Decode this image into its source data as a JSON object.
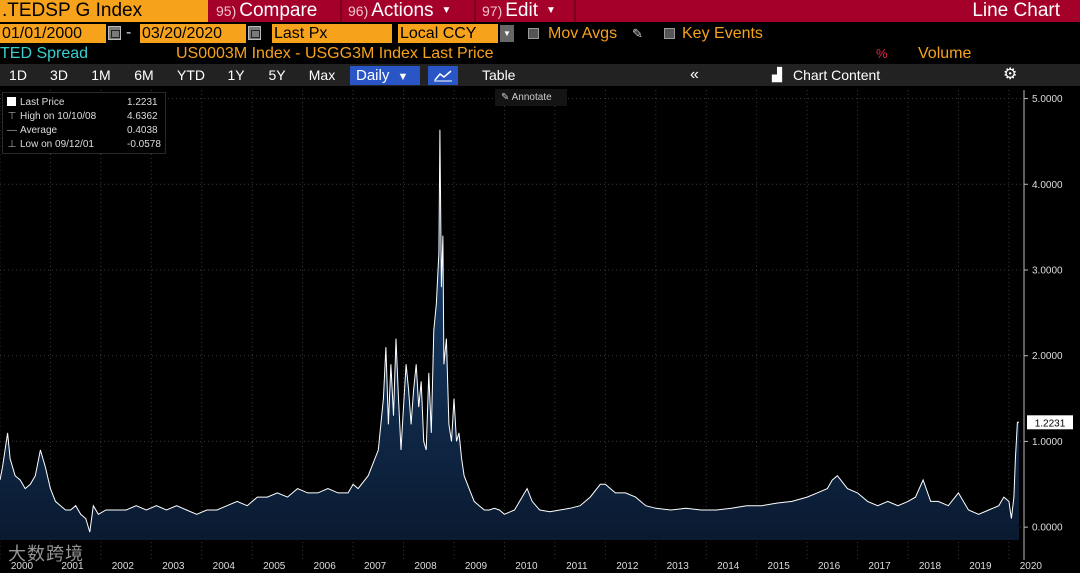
{
  "header": {
    "ticker": ".TEDSP G Index",
    "compare_num": "95)",
    "compare_label": "Compare",
    "actions_num": "96)",
    "actions_label": "Actions",
    "edit_num": "97)",
    "edit_label": "Edit",
    "chart_type": "Line Chart"
  },
  "controls": {
    "start_date": "01/01/2000",
    "end_date": "03/20/2020",
    "date_sep": "-",
    "field": "Last Px",
    "currency": "Local CCY",
    "mov_avgs": "Mov Avgs",
    "key_events": "Key Events"
  },
  "series_row": {
    "name": "TED Spread",
    "formula": "US0003M Index - USGG3M Index Last Price",
    "pct": "%",
    "volume": "Volume"
  },
  "toolbar": {
    "periods": [
      "1D",
      "3D",
      "1M",
      "6M",
      "YTD",
      "1Y",
      "5Y",
      "Max"
    ],
    "frequency": "Daily",
    "table": "Table",
    "collapse": "«",
    "chart_content": "Chart Content"
  },
  "legend": {
    "last_price_label": "Last Price",
    "last_price_value": "1.2231",
    "high_label": "High on 10/10/08",
    "high_value": "4.6362",
    "average_label": "Average",
    "average_value": "0.4038",
    "low_label": "Low on 09/12/01",
    "low_value": "-0.0578"
  },
  "annotate_label": "Annotate",
  "watermark": "大数跨境",
  "colors": {
    "line": "#ffffff",
    "area_top": "#1c4a7e",
    "area_bottom": "#0a1a30",
    "accent_orange": "#f7a21b",
    "header_red": "#a5002a"
  },
  "chart_data": {
    "type": "area",
    "title": "",
    "xlabel": "",
    "ylabel": "",
    "xlim": [
      2000.0,
      2020.3
    ],
    "ylim": [
      -0.15,
      5.1
    ],
    "y_ticks": [
      "0.0000",
      "1.0000",
      "2.0000",
      "3.0000",
      "4.0000",
      "5.0000"
    ],
    "x_ticks": [
      "2000",
      "2001",
      "2002",
      "2003",
      "2004",
      "2005",
      "2006",
      "2007",
      "2008",
      "2009",
      "2010",
      "2011",
      "2012",
      "2013",
      "2014",
      "2015",
      "2016",
      "2017",
      "2018",
      "2019",
      "2020"
    ],
    "last_value_label": "1.2231",
    "grid": true,
    "series": [
      {
        "x": [
          2000.0,
          2000.05,
          2000.15,
          2000.2,
          2000.3,
          2000.4,
          2000.5,
          2000.6,
          2000.7,
          2000.8,
          2000.9,
          2001.0,
          2001.1,
          2001.2,
          2001.3,
          2001.4,
          2001.5,
          2001.6,
          2001.7,
          2001.78,
          2001.85,
          2001.95,
          2002.1,
          2002.3,
          2002.5,
          2002.7,
          2002.9,
          2003.1,
          2003.3,
          2003.5,
          2003.7,
          2003.9,
          2004.1,
          2004.3,
          2004.5,
          2004.7,
          2004.9,
          2005.1,
          2005.3,
          2005.5,
          2005.7,
          2005.9,
          2006.1,
          2006.3,
          2006.5,
          2006.7,
          2006.9,
          2007.0,
          2007.1,
          2007.3,
          2007.5,
          2007.6,
          2007.65,
          2007.7,
          2007.75,
          2007.8,
          2007.85,
          2007.9,
          2007.95,
          2008.0,
          2008.05,
          2008.1,
          2008.15,
          2008.2,
          2008.25,
          2008.3,
          2008.35,
          2008.4,
          2008.45,
          2008.5,
          2008.55,
          2008.6,
          2008.65,
          2008.7,
          2008.72,
          2008.75,
          2008.78,
          2008.8,
          2008.85,
          2008.9,
          2008.95,
          2009.0,
          2009.05,
          2009.1,
          2009.15,
          2009.2,
          2009.3,
          2009.4,
          2009.5,
          2009.6,
          2009.7,
          2009.8,
          2009.9,
          2010.0,
          2010.2,
          2010.35,
          2010.45,
          2010.55,
          2010.7,
          2010.9,
          2011.1,
          2011.3,
          2011.5,
          2011.7,
          2011.9,
          2012.0,
          2012.2,
          2012.4,
          2012.6,
          2012.8,
          2013.0,
          2013.3,
          2013.6,
          2013.9,
          2014.2,
          2014.5,
          2014.8,
          2015.1,
          2015.4,
          2015.7,
          2016.0,
          2016.2,
          2016.4,
          2016.5,
          2016.6,
          2016.8,
          2017.0,
          2017.2,
          2017.4,
          2017.6,
          2017.8,
          2018.0,
          2018.15,
          2018.3,
          2018.45,
          2018.6,
          2018.8,
          2019.0,
          2019.2,
          2019.4,
          2019.6,
          2019.8,
          2019.9,
          2020.0,
          2020.05,
          2020.1,
          2020.13,
          2020.17,
          2020.2
        ],
        "y": [
          0.55,
          0.7,
          1.1,
          0.8,
          0.6,
          0.55,
          0.45,
          0.5,
          0.6,
          0.9,
          0.7,
          0.45,
          0.3,
          0.25,
          0.2,
          0.2,
          0.25,
          0.15,
          0.1,
          -0.0578,
          0.25,
          0.15,
          0.2,
          0.2,
          0.2,
          0.25,
          0.2,
          0.25,
          0.2,
          0.25,
          0.2,
          0.15,
          0.2,
          0.2,
          0.25,
          0.3,
          0.25,
          0.35,
          0.35,
          0.4,
          0.35,
          0.45,
          0.4,
          0.4,
          0.45,
          0.4,
          0.4,
          0.5,
          0.45,
          0.6,
          0.9,
          1.5,
          2.1,
          1.2,
          1.9,
          1.3,
          2.2,
          1.5,
          0.9,
          1.4,
          1.9,
          1.6,
          1.2,
          1.6,
          1.9,
          1.4,
          1.7,
          1.0,
          0.9,
          1.8,
          1.1,
          2.3,
          2.6,
          3.2,
          4.6362,
          2.8,
          3.4,
          1.9,
          2.2,
          1.2,
          1.0,
          1.5,
          1.0,
          1.1,
          0.8,
          0.6,
          0.45,
          0.3,
          0.25,
          0.2,
          0.2,
          0.22,
          0.2,
          0.15,
          0.2,
          0.35,
          0.45,
          0.3,
          0.2,
          0.18,
          0.2,
          0.22,
          0.25,
          0.35,
          0.5,
          0.5,
          0.4,
          0.4,
          0.35,
          0.25,
          0.22,
          0.2,
          0.22,
          0.2,
          0.2,
          0.22,
          0.25,
          0.25,
          0.28,
          0.3,
          0.35,
          0.4,
          0.45,
          0.55,
          0.6,
          0.45,
          0.4,
          0.3,
          0.25,
          0.3,
          0.25,
          0.3,
          0.35,
          0.55,
          0.3,
          0.3,
          0.25,
          0.4,
          0.2,
          0.15,
          0.2,
          0.25,
          0.35,
          0.3,
          0.1,
          0.35,
          0.8,
          1.2231,
          1.2231
        ]
      }
    ]
  }
}
